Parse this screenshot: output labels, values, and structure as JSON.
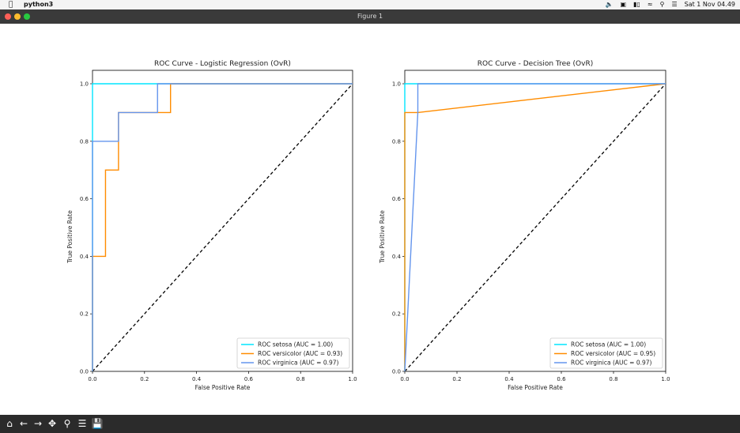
{
  "menubar": {
    "app_name": "python3",
    "datetime": "Sat 1 Nov  04.49",
    "icons": [
      "apple-icon",
      "volume-icon",
      "display-icon",
      "battery-icon",
      "wifi-icon",
      "search-icon",
      "control-center-icon"
    ]
  },
  "window": {
    "title": "Figure 1",
    "buttons": {
      "close": "#fe5f57",
      "minimize": "#febc2e",
      "zoom": "#28c840"
    }
  },
  "toolbar": {
    "icons": [
      "home-icon",
      "back-icon",
      "forward-icon",
      "pan-icon",
      "zoom-icon",
      "configure-icon",
      "save-icon"
    ]
  },
  "chart_data": [
    {
      "type": "line",
      "title": "ROC Curve - Logistic Regression (OvR)",
      "xlabel": "False Positive Rate",
      "ylabel": "True Positive Rate",
      "xlim": [
        0.0,
        1.0
      ],
      "ylim": [
        0.0,
        1.0
      ],
      "xticks": [
        "0.0",
        "0.2",
        "0.4",
        "0.6",
        "0.8",
        "1.0"
      ],
      "yticks": [
        "0.0",
        "0.2",
        "0.4",
        "0.6",
        "0.8",
        "1.0"
      ],
      "grid": false,
      "legend_position": "lower-right",
      "series": [
        {
          "name": "ROC setosa (AUC = 1.00)",
          "color": "#00e5ff",
          "x": [
            0,
            0,
            1
          ],
          "y": [
            0,
            1,
            1
          ]
        },
        {
          "name": "ROC versicolor (AUC = 0.93)",
          "color": "#ff8c00",
          "x": [
            0,
            0,
            0.05,
            0.05,
            0.1,
            0.1,
            0.3,
            0.3,
            1
          ],
          "y": [
            0,
            0.4,
            0.4,
            0.7,
            0.7,
            0.9,
            0.9,
            1,
            1
          ]
        },
        {
          "name": "ROC virginica (AUC = 0.97)",
          "color": "#6495ed",
          "x": [
            0,
            0,
            0.1,
            0.1,
            0.25,
            0.25,
            1
          ],
          "y": [
            0,
            0.8,
            0.8,
            0.9,
            0.9,
            1,
            1
          ]
        }
      ],
      "diagonal": {
        "x": [
          0,
          1
        ],
        "y": [
          0,
          1
        ],
        "color": "#000000",
        "style": "dashed"
      }
    },
    {
      "type": "line",
      "title": "ROC Curve - Decision Tree (OvR)",
      "xlabel": "False Positive Rate",
      "ylabel": "True Positive Rate",
      "xlim": [
        0.0,
        1.0
      ],
      "ylim": [
        0.0,
        1.0
      ],
      "xticks": [
        "0.0",
        "0.2",
        "0.4",
        "0.6",
        "0.8",
        "1.0"
      ],
      "yticks": [
        "0.0",
        "0.2",
        "0.4",
        "0.6",
        "0.8",
        "1.0"
      ],
      "grid": false,
      "legend_position": "lower-right",
      "series": [
        {
          "name": "ROC setosa (AUC = 1.00)",
          "color": "#00e5ff",
          "x": [
            0,
            0,
            1
          ],
          "y": [
            0,
            1,
            1
          ]
        },
        {
          "name": "ROC versicolor (AUC = 0.95)",
          "color": "#ff8c00",
          "x": [
            0,
            0,
            0.05,
            1
          ],
          "y": [
            0,
            0.9,
            0.9,
            1
          ]
        },
        {
          "name": "ROC virginica (AUC = 0.97)",
          "color": "#6495ed",
          "x": [
            0,
            0.05,
            0.05,
            1
          ],
          "y": [
            0,
            0.9,
            1,
            1
          ]
        }
      ],
      "diagonal": {
        "x": [
          0,
          1
        ],
        "y": [
          0,
          1
        ],
        "color": "#000000",
        "style": "dashed"
      }
    }
  ]
}
